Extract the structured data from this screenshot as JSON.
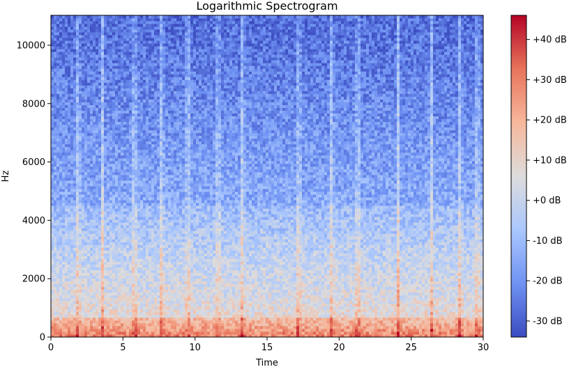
{
  "chart_data": {
    "type": "heatmap",
    "title": "Logarithmic Spectrogram",
    "xlabel": "Time",
    "ylabel": "Hz",
    "xlim": [
      0,
      30
    ],
    "ylim": [
      0,
      11025
    ],
    "x_ticks": [
      0,
      5,
      10,
      15,
      20,
      25,
      30
    ],
    "y_ticks": [
      0,
      2000,
      4000,
      6000,
      8000,
      10000
    ],
    "colorbar": {
      "label_format": "%+2.0f dB",
      "range": [
        -34,
        46
      ],
      "ticks": [
        -30,
        -20,
        -10,
        0,
        10,
        20,
        30,
        40
      ],
      "tick_labels": [
        "-30 dB",
        "-20 dB",
        "-10 dB",
        "+0 dB",
        "+10 dB",
        "+20 dB",
        "+30 dB",
        "+40 dB"
      ],
      "colormap": "coolwarm",
      "colors": [
        "#3b4cc0",
        "#6f92f3",
        "#aac7fd",
        "#dddcdc",
        "#f7b89c",
        "#e7745b",
        "#b40426"
      ]
    },
    "grid": false,
    "description_levels": {
      "low_freq_band_hz": [
        0,
        700
      ],
      "low_freq_level_db": 30,
      "mid_freq_band_hz": [
        700,
        4500
      ],
      "mid_freq_level_db": -8,
      "high_freq_level_db": -25
    },
    "vertical_onset_times": [
      1.9,
      3.6,
      5.8,
      7.7,
      9.5,
      11.6,
      13.3,
      17.2,
      19.5,
      21.3,
      24.1,
      26.4,
      28.4,
      29.6
    ]
  }
}
